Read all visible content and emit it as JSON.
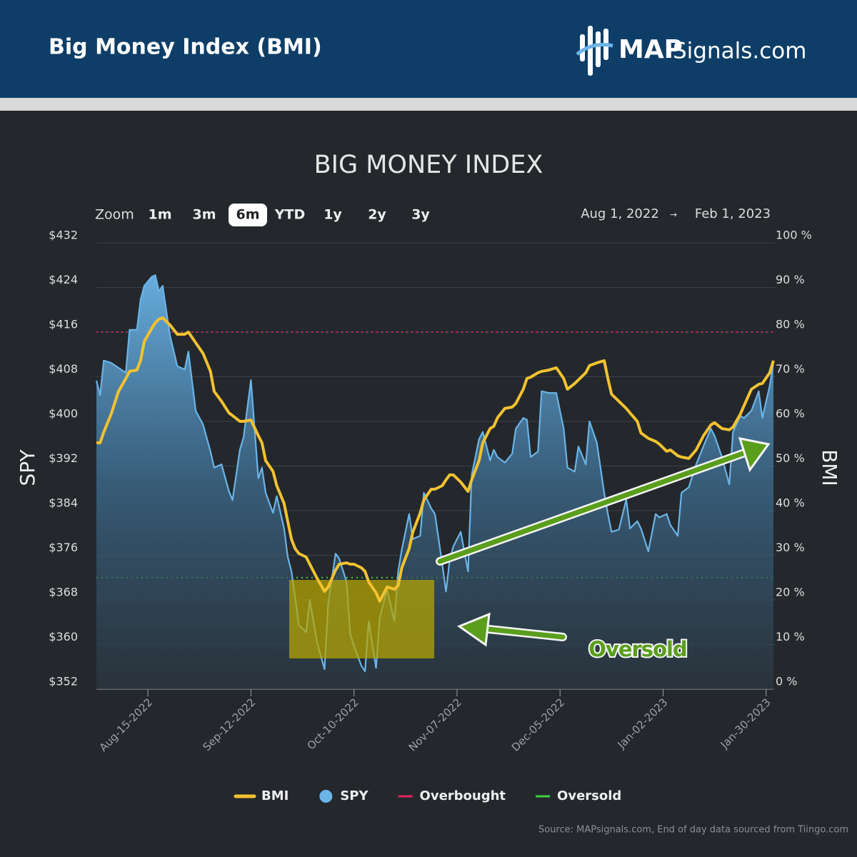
{
  "header": {
    "title": "Big Money Index (BMI)",
    "logo_bold": "MAP",
    "logo_rest": "Signals.com"
  },
  "controls": {
    "label": "Zoom",
    "buttons": [
      "1m",
      "3m",
      "6m",
      "YTD",
      "1y",
      "2y",
      "3y"
    ],
    "selected": "6m",
    "range_from": "Aug 1, 2022",
    "range_separator": "→",
    "range_to": "Feb 1, 2023"
  },
  "chart_data": {
    "type": "line",
    "title": "BIG MONEY INDEX",
    "ylabel": "SPY",
    "y2label": "BMI",
    "source": "Source: MAPsignals.com, End of day data sourced from Tiingo.com",
    "annotations": [
      {
        "text": "Oversold",
        "color": "#5a9e1c"
      }
    ],
    "xlim": [
      "2022-08-01",
      "2023-02-01"
    ],
    "xticks": [
      {
        "value": "2022-08-15",
        "label": "Aug-15-2022"
      },
      {
        "value": "2022-09-12",
        "label": "Sep-12-2022"
      },
      {
        "value": "2022-10-10",
        "label": "Oct-10-2022"
      },
      {
        "value": "2022-11-07",
        "label": "Nov-07-2022"
      },
      {
        "value": "2022-12-05",
        "label": "Dec-05-2022"
      },
      {
        "value": "2023-01-02",
        "label": "Jan-02-2023"
      },
      {
        "value": "2023-01-30",
        "label": "Jan-30-2023"
      }
    ],
    "ylim": [
      352,
      432
    ],
    "yticks": [
      {
        "value": 352,
        "label": "$352"
      },
      {
        "value": 360,
        "label": "$360"
      },
      {
        "value": 368,
        "label": "$368"
      },
      {
        "value": 376,
        "label": "$376"
      },
      {
        "value": 384,
        "label": "$384"
      },
      {
        "value": 392,
        "label": "$392"
      },
      {
        "value": 400,
        "label": "$400"
      },
      {
        "value": 408,
        "label": "$408"
      },
      {
        "value": 416,
        "label": "$416"
      },
      {
        "value": 424,
        "label": "$424"
      },
      {
        "value": 432,
        "label": "$432"
      }
    ],
    "y2lim": [
      0,
      100
    ],
    "y2ticks": [
      {
        "value": 0,
        "label": "0 %"
      },
      {
        "value": 10,
        "label": "10 %"
      },
      {
        "value": 20,
        "label": "20 %"
      },
      {
        "value": 30,
        "label": "30 %"
      },
      {
        "value": 40,
        "label": "40 %"
      },
      {
        "value": 50,
        "label": "50 %"
      },
      {
        "value": 60,
        "label": "60 %"
      },
      {
        "value": 70,
        "label": "70 %"
      },
      {
        "value": 80,
        "label": "80 %"
      },
      {
        "value": 90,
        "label": "90 %"
      },
      {
        "value": 100,
        "label": "100 %"
      }
    ],
    "grid": true,
    "x": [
      "2022-08-01",
      "2022-08-02",
      "2022-08-03",
      "2022-08-05",
      "2022-08-07",
      "2022-08-09",
      "2022-08-10",
      "2022-08-12",
      "2022-08-13",
      "2022-08-14",
      "2022-08-16",
      "2022-08-17",
      "2022-08-18",
      "2022-08-19",
      "2022-08-21",
      "2022-08-23",
      "2022-08-25",
      "2022-08-26",
      "2022-08-28",
      "2022-08-30",
      "2022-09-01",
      "2022-09-02",
      "2022-09-04",
      "2022-09-06",
      "2022-09-07",
      "2022-09-09",
      "2022-09-10",
      "2022-09-12",
      "2022-09-14",
      "2022-09-15",
      "2022-09-16",
      "2022-09-18",
      "2022-09-19",
      "2022-09-21",
      "2022-09-22",
      "2022-09-23",
      "2022-09-24",
      "2022-09-25",
      "2022-09-27",
      "2022-09-28",
      "2022-09-30",
      "2022-10-02",
      "2022-10-03",
      "2022-10-05",
      "2022-10-06",
      "2022-10-08",
      "2022-10-09",
      "2022-10-10",
      "2022-10-12",
      "2022-10-13",
      "2022-10-14",
      "2022-10-16",
      "2022-10-17",
      "2022-10-19",
      "2022-10-21",
      "2022-10-22",
      "2022-10-23",
      "2022-10-25",
      "2022-10-26",
      "2022-10-28",
      "2022-10-29",
      "2022-10-31",
      "2022-11-01",
      "2022-11-03",
      "2022-11-04",
      "2022-11-05",
      "2022-11-06",
      "2022-11-08",
      "2022-11-10",
      "2022-11-11",
      "2022-11-13",
      "2022-11-14",
      "2022-11-16",
      "2022-11-17",
      "2022-11-18",
      "2022-11-20",
      "2022-11-22",
      "2022-11-23",
      "2022-11-25",
      "2022-11-26",
      "2022-11-27",
      "2022-11-29",
      "2022-11-30",
      "2022-12-02",
      "2022-12-04",
      "2022-12-06",
      "2022-12-07",
      "2022-12-09",
      "2022-12-10",
      "2022-12-12",
      "2022-12-13",
      "2022-12-15",
      "2022-12-17",
      "2022-12-18",
      "2022-12-19",
      "2022-12-21",
      "2022-12-23",
      "2022-12-24",
      "2022-12-26",
      "2022-12-27",
      "2022-12-29",
      "2022-12-31",
      "2023-01-01",
      "2023-01-03",
      "2023-01-04",
      "2023-01-06",
      "2023-01-07",
      "2023-01-09",
      "2023-01-11",
      "2023-01-13",
      "2023-01-15",
      "2023-01-16",
      "2023-01-18",
      "2023-01-20",
      "2023-01-21",
      "2023-01-23",
      "2023-01-24",
      "2023-01-26",
      "2023-01-28",
      "2023-01-29",
      "2023-01-31",
      "2023-02-01"
    ],
    "series": [
      {
        "name": "BMI",
        "color": "#f2c230",
        "axis": "y2",
        "marker": "line",
        "values": [
          55.2,
          55.2,
          57.6,
          61.6,
          66.7,
          69.6,
          71.2,
          71.5,
          73.6,
          77.9,
          80.8,
          82.1,
          82.9,
          83.2,
          81.6,
          79.5,
          79.5,
          80,
          77.6,
          75.2,
          71.2,
          66.7,
          64.5,
          61.9,
          61.3,
          60,
          60,
          60.3,
          56.8,
          55.2,
          51.2,
          48.8,
          45.6,
          41.6,
          37.6,
          33.6,
          31.5,
          30.4,
          29.6,
          28,
          24.8,
          21.9,
          22.9,
          26.7,
          28,
          28.3,
          28,
          28,
          27.2,
          26.4,
          24,
          21.6,
          19.7,
          22.9,
          22.4,
          23.2,
          27.2,
          31.5,
          35.2,
          39.5,
          42.4,
          44.8,
          44.8,
          45.6,
          46.9,
          48,
          48,
          46.4,
          44.3,
          46.9,
          51.2,
          55.2,
          58.4,
          58.9,
          60.8,
          62.9,
          63.2,
          64,
          67.2,
          69.6,
          69.9,
          70.9,
          71.2,
          71.5,
          72,
          69.6,
          67.2,
          68.5,
          69.3,
          70.9,
          72.5,
          73.1,
          73.6,
          69.6,
          66.1,
          64.5,
          62.9,
          61.9,
          60,
          57.4,
          56.2,
          55.5,
          54.9,
          53.3,
          53.6,
          52.3,
          52,
          51.7,
          53.6,
          56.8,
          59.2,
          59.7,
          58.4,
          58.1,
          58.7,
          61.6,
          63.5,
          67.2,
          68.3,
          68.5,
          70.9,
          73.6
        ]
      },
      {
        "name": "SPY",
        "color": "#6ab4e8",
        "marker": "circle",
        "area": true,
        "values": [
          407.3,
          404.7,
          410.9,
          410.5,
          409.6,
          408.7,
          416.4,
          416.4,
          421.8,
          424.3,
          425.9,
          426.2,
          423.3,
          424.3,
          415.4,
          409.9,
          409.3,
          412.5,
          401.9,
          399.4,
          394.6,
          391.7,
          392.3,
          387.5,
          385.9,
          394.9,
          397.2,
          407.4,
          389.8,
          391.7,
          387.2,
          383.6,
          386.6,
          380.8,
          375.7,
          373.1,
          368.6,
          363.5,
          362.2,
          368,
          360.3,
          355.6,
          367.4,
          376.3,
          375.4,
          371.2,
          361.9,
          359.7,
          356.2,
          355.2,
          364.2,
          355.8,
          364.8,
          369.9,
          364.2,
          373.1,
          377,
          383.4,
          378.9,
          379.5,
          387.2,
          384.4,
          383.4,
          374.4,
          369.5,
          375,
          377.6,
          380.2,
          373.1,
          390.4,
          396.8,
          398.1,
          393,
          394.9,
          393.6,
          392.6,
          394.2,
          398.7,
          400.6,
          400.3,
          393.6,
          394.6,
          405.4,
          405.1,
          405.1,
          398.7,
          391.7,
          391,
          395.5,
          392.3,
          400,
          396.2,
          387.2,
          383.4,
          380.2,
          380.6,
          386,
          380.8,
          382.1,
          380.8,
          376.7,
          383.4,
          382.8,
          383.4,
          381.4,
          379.5,
          387.2,
          388.2,
          392.3,
          395.6,
          398.7,
          397.4,
          393.6,
          388.7,
          398.1,
          401,
          400.6,
          401.9,
          405.4,
          400.6,
          406.4,
          410.5
        ]
      }
    ],
    "reference_lines": [
      {
        "name": "Overbought",
        "value": 80,
        "axis": "y2",
        "color": "#e0245e"
      },
      {
        "name": "Oversold",
        "value": 25,
        "axis": "y2",
        "color": "#3ecf3e"
      }
    ]
  }
}
